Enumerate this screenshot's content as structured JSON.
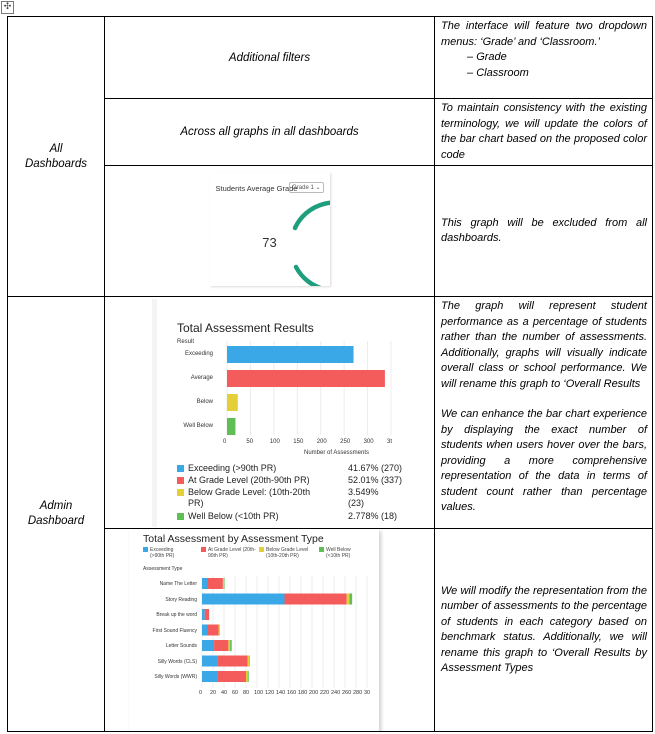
{
  "page": {
    "move_handle": "✣",
    "colors": {
      "blue": "#3aa7e6",
      "red": "#f45b5b",
      "yellow": "#e5cf39",
      "green": "#5fbf55",
      "gauge": "#1e9e7c"
    }
  },
  "table": {
    "rows": [
      {
        "dashboard": "All Dashboards",
        "subrows": [
          {
            "label": "Additional filters",
            "desc_lines": [
              "The interface will feature two dropdown menus: ‘Grade’ and ‘Classroom.’"
            ],
            "bullets": [
              "Grade",
              "Classroom"
            ]
          },
          {
            "label": "Across all graphs in all dashboards",
            "desc": "To maintain consistency with the existing terminology, we will update the colors of the bar chart based on the proposed color code"
          },
          {
            "gauge": {
              "title": "Students Average Grade",
              "select": "Grade 1 ⌄",
              "value": "73"
            },
            "desc": "This graph will be excluded from all dashboards."
          }
        ]
      },
      {
        "dashboard": "Admin Dashboard",
        "subrows": [
          {
            "desc_p1": "The graph will represent student performance as a percentage of students rather than the number of assessments. Additionally, graphs will visually indicate overall class or school performance. We will rename this graph to ‘Overall Results",
            "desc_p2": "We can enhance the bar chart experience by displaying the exact number of students when users hover over the bars, providing a more comprehensive representation of the data in terms of student count rather than percentage values."
          },
          {
            "desc": "We will modify the representation from the number of assessments to the percentage of students in each category based on benchmark status. Additionally, we will rename this graph to ‘Overall Results by Assessment Types"
          }
        ]
      }
    ]
  },
  "chart_data": [
    {
      "type": "bar",
      "orientation": "horizontal",
      "title": "Total Assessment Results",
      "subtitle": "Result",
      "categories": [
        "Exceeding",
        "Average",
        "Below",
        "Well Below"
      ],
      "values": [
        270,
        337,
        23,
        18
      ],
      "xlabel": "Number of Assessments",
      "x_ticks": [
        "0",
        "50",
        "100",
        "150",
        "200",
        "250",
        "300",
        "3t"
      ],
      "xlim": [
        0,
        350
      ],
      "colors": [
        "#3aa7e6",
        "#f45b5b",
        "#e5cf39",
        "#5fbf55"
      ],
      "legend": [
        {
          "label": "Exceeding (>90th PR)",
          "value": "41.67% (270)"
        },
        {
          "label": "At Grade Level (20th-90th PR)",
          "value": "52.01% (337)"
        },
        {
          "label": "Below Grade Level: (10th-20th",
          "label2": "PR)",
          "value": "3.549%",
          "value2": "(23)"
        },
        {
          "label": "Well Below (<10th PR)",
          "value": "2.778% (18)"
        }
      ]
    },
    {
      "type": "bar",
      "orientation": "horizontal",
      "stacked": true,
      "title": "Total Assessment by Assessment Type",
      "subtitle": "Assessment Type",
      "legend": [
        {
          "l1": "Exceeding",
          "l2": "(>90th PR)"
        },
        {
          "l1": "At Grade Level (20th-",
          "l2": "90th PR)"
        },
        {
          "l1": "Below Grade Level",
          "l2": "(10th-20th PR)"
        },
        {
          "l1": "Well Below",
          "l2": "(<10th PR)"
        }
      ],
      "categories": [
        "Name The Letter",
        "Story Reading",
        "Break up the word",
        "First Sound Fluency",
        "Letter Sounds",
        "Silly Words (CLS)",
        "Silly Words (WWR)"
      ],
      "series": [
        {
          "values": [
            10,
            150,
            5,
            10,
            22,
            28,
            28
          ]
        },
        {
          "values": [
            28,
            113,
            8,
            20,
            26,
            55,
            52
          ]
        },
        {
          "values": [
            2,
            5,
            0,
            1,
            3,
            3,
            3
          ]
        },
        {
          "values": [
            1,
            5,
            0,
            1,
            3,
            1,
            2
          ]
        }
      ],
      "x_ticks": [
        "0",
        "20",
        "40",
        "60",
        "80",
        "100",
        "120",
        "140",
        "160",
        "180",
        "200",
        "220",
        "240",
        "260",
        "280",
        "30"
      ],
      "xlim": [
        0,
        300
      ],
      "colors": [
        "#3aa7e6",
        "#f45b5b",
        "#e5cf39",
        "#5fbf55"
      ]
    }
  ]
}
